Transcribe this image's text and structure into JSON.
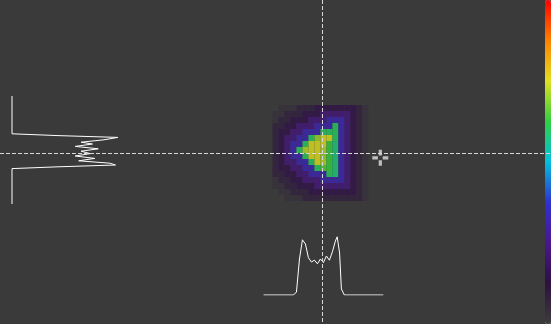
{
  "chart_data": {
    "type": "heatmap",
    "tick_labels": false,
    "xlim": [
      0,
      92
    ],
    "ylim": [
      0,
      54
    ],
    "x": [
      46,
      47,
      48,
      49,
      50,
      51,
      52,
      53,
      54,
      55,
      56,
      57,
      58,
      59,
      60,
      61
    ],
    "y": [
      18,
      19,
      20,
      21,
      22,
      23,
      24,
      25,
      26,
      27,
      28,
      29,
      30,
      31,
      32,
      33
    ],
    "z": [
      [
        0,
        3,
        3,
        3,
        8,
        8,
        8,
        14,
        14,
        14,
        14,
        14,
        14,
        14,
        8,
        3
      ],
      [
        3,
        3,
        8,
        8,
        8,
        14,
        14,
        14,
        22,
        22,
        22,
        22,
        22,
        14,
        8,
        3
      ],
      [
        3,
        8,
        8,
        14,
        14,
        14,
        22,
        22,
        22,
        32,
        32,
        32,
        22,
        14,
        8,
        3
      ],
      [
        8,
        8,
        14,
        14,
        22,
        22,
        22,
        32,
        32,
        32,
        60,
        32,
        22,
        14,
        8,
        3
      ],
      [
        8,
        14,
        14,
        22,
        22,
        32,
        32,
        32,
        60,
        60,
        60,
        32,
        22,
        14,
        8,
        3
      ],
      [
        8,
        14,
        22,
        22,
        32,
        32,
        60,
        70,
        75,
        75,
        60,
        32,
        22,
        14,
        8,
        3
      ],
      [
        8,
        14,
        22,
        32,
        32,
        60,
        75,
        75,
        75,
        63,
        58,
        32,
        22,
        14,
        8,
        3
      ],
      [
        8,
        14,
        22,
        32,
        60,
        72,
        75,
        75,
        72,
        63,
        58,
        32,
        22,
        14,
        8,
        3
      ],
      [
        8,
        14,
        22,
        32,
        32,
        60,
        75,
        75,
        70,
        63,
        58,
        32,
        22,
        14,
        8,
        3
      ],
      [
        8,
        14,
        22,
        22,
        32,
        32,
        60,
        75,
        72,
        63,
        58,
        32,
        22,
        14,
        8,
        3
      ],
      [
        8,
        14,
        14,
        22,
        22,
        32,
        32,
        60,
        65,
        63,
        58,
        32,
        22,
        14,
        8,
        3
      ],
      [
        8,
        8,
        14,
        14,
        22,
        22,
        32,
        32,
        32,
        60,
        58,
        32,
        22,
        14,
        8,
        3
      ],
      [
        3,
        8,
        8,
        14,
        14,
        22,
        22,
        22,
        32,
        32,
        32,
        32,
        22,
        14,
        8,
        3
      ],
      [
        3,
        3,
        8,
        8,
        14,
        14,
        14,
        22,
        22,
        22,
        22,
        22,
        22,
        14,
        8,
        3
      ],
      [
        0,
        3,
        3,
        8,
        8,
        8,
        14,
        14,
        14,
        14,
        14,
        14,
        14,
        14,
        8,
        3
      ],
      [
        0,
        0,
        3,
        3,
        3,
        8,
        8,
        8,
        8,
        8,
        8,
        8,
        8,
        8,
        8,
        3
      ]
    ],
    "color_range": [
      0,
      100
    ],
    "centroid": {
      "x": 53.8,
      "y": 25.5
    },
    "cursor": {
      "x": 63.5,
      "y": 26.3,
      "marker": "cross"
    },
    "profile_lim": [
      0,
      100
    ],
    "profiles": {
      "horizontal": {
        "x": [
          44,
          49,
          49.5,
          50,
          50.5,
          51,
          51.5,
          52,
          52.5,
          53,
          53.5,
          54,
          54.5,
          55,
          55.5,
          56,
          56.3,
          56.7,
          57,
          57.5,
          64
        ],
        "values": [
          0,
          0,
          5,
          60,
          92,
          85,
          62,
          55,
          58,
          52,
          60,
          54,
          65,
          58,
          72,
          90,
          97,
          70,
          10,
          0,
          0
        ]
      },
      "vertical": {
        "y": [
          16,
          22.3,
          22.6,
          22.9,
          23.3,
          23.7,
          24,
          24.4,
          24.8,
          25.2,
          25.6,
          26,
          26.4,
          26.8,
          27.2,
          27.5,
          27.8,
          28.1,
          34
        ],
        "values": [
          0,
          0,
          40,
          92,
          80,
          60,
          70,
          55,
          75,
          60,
          68,
          55,
          72,
          58,
          85,
          90,
          40,
          0,
          0
        ]
      }
    }
  }
}
